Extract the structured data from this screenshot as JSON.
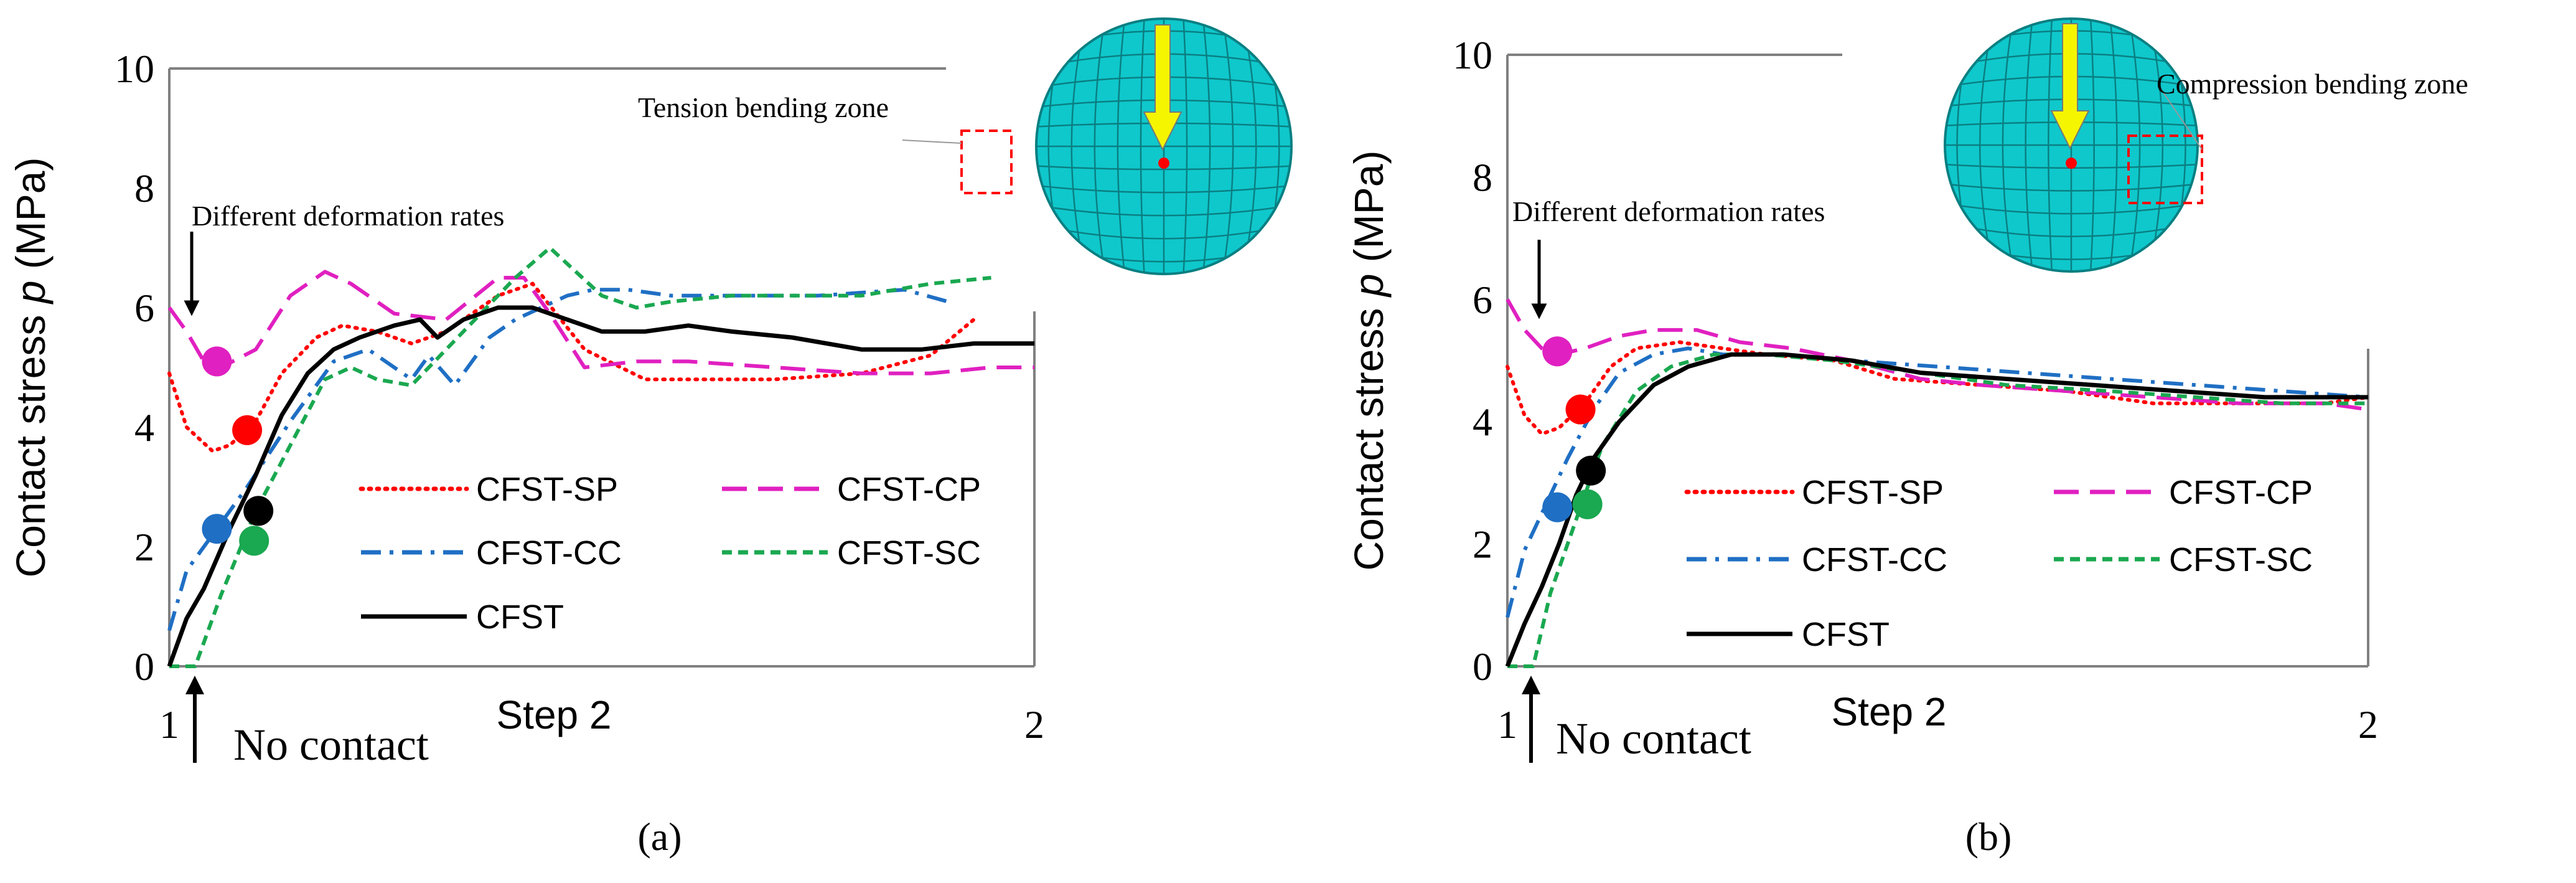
{
  "figure": {
    "captions": [
      "(a)",
      "(b)"
    ]
  },
  "colors": {
    "CFST-SP": "#ff0000",
    "CFST-CP": "#e020c0",
    "CFST-CC": "#1f6fc4",
    "CFST-SC": "#1aa850",
    "CFST": "#000000",
    "disk_fill": "#0fc8cc",
    "disk_grid": "#0a7f82",
    "arrow_fill": "#f5f500",
    "zone_box": "#ff0000"
  },
  "chart_data": [
    {
      "type": "line",
      "panel": "a",
      "caption": "(a)",
      "ylabel_prefix": "Contact stress ",
      "ylabel_italic": "p",
      "ylabel_suffix": " (MPa)",
      "ylim": [
        0,
        10
      ],
      "yticks": [
        "0",
        "2",
        "4",
        "6",
        "8",
        "10"
      ],
      "xlim": [
        1,
        2
      ],
      "xticks": [
        "1",
        "2"
      ],
      "step_label": "Step 2",
      "no_contact_label": "No contact",
      "deformation_label": "Different deformation rates",
      "zone_label": "Tension bending zone",
      "zone_side": "left",
      "grid": false,
      "legend": [
        "CFST-SP",
        "CFST-CP",
        "CFST-CC",
        "CFST-SC",
        "CFST"
      ],
      "series": [
        {
          "name": "CFST-SP",
          "dash": "dotted",
          "x": [
            1.0,
            1.02,
            1.05,
            1.07,
            1.1,
            1.13,
            1.17,
            1.2,
            1.24,
            1.28,
            1.32,
            1.35,
            1.38,
            1.42,
            1.48,
            1.55,
            1.6,
            1.65,
            1.7,
            1.8,
            1.88,
            1.93
          ],
          "y": [
            4.9,
            4.0,
            3.6,
            3.7,
            4.1,
            4.9,
            5.5,
            5.7,
            5.6,
            5.4,
            5.6,
            5.9,
            6.2,
            6.4,
            5.3,
            4.8,
            4.8,
            4.8,
            4.8,
            4.9,
            5.2,
            5.8
          ]
        },
        {
          "name": "CFST-CP",
          "dash": "dashed",
          "x": [
            1.0,
            1.02,
            1.04,
            1.06,
            1.1,
            1.14,
            1.18,
            1.21,
            1.26,
            1.32,
            1.38,
            1.41,
            1.44,
            1.48,
            1.54,
            1.6,
            1.7,
            1.8,
            1.88,
            1.95,
            2.0
          ],
          "y": [
            6.0,
            5.6,
            5.1,
            5.0,
            5.3,
            6.2,
            6.6,
            6.4,
            5.9,
            5.8,
            6.5,
            6.5,
            5.9,
            5.0,
            5.1,
            5.1,
            5.0,
            4.9,
            4.9,
            5.0,
            5.0
          ]
        },
        {
          "name": "CFST-CC",
          "dash": "dashdot",
          "x": [
            1.0,
            1.02,
            1.05,
            1.09,
            1.14,
            1.19,
            1.23,
            1.26,
            1.28,
            1.3,
            1.33,
            1.37,
            1.4,
            1.43,
            1.46,
            1.49,
            1.53,
            1.58,
            1.65,
            1.75,
            1.85,
            1.9
          ],
          "y": [
            0.6,
            1.6,
            2.2,
            3.0,
            4.1,
            5.1,
            5.3,
            5.0,
            4.8,
            5.2,
            4.7,
            5.5,
            5.8,
            6.0,
            6.2,
            6.3,
            6.3,
            6.2,
            6.2,
            6.2,
            6.3,
            6.1
          ]
        },
        {
          "name": "CFST-SC",
          "dash": "shortdash",
          "x": [
            1.0,
            1.03,
            1.06,
            1.1,
            1.14,
            1.18,
            1.21,
            1.24,
            1.28,
            1.32,
            1.36,
            1.4,
            1.44,
            1.47,
            1.5,
            1.54,
            1.58,
            1.65,
            1.72,
            1.8,
            1.88,
            1.95
          ],
          "y": [
            0.0,
            0.0,
            1.2,
            2.6,
            3.7,
            4.8,
            5.0,
            4.8,
            4.7,
            5.3,
            5.9,
            6.5,
            7.0,
            6.6,
            6.2,
            6.0,
            6.1,
            6.2,
            6.2,
            6.2,
            6.4,
            6.5
          ]
        },
        {
          "name": "CFST",
          "dash": "solid",
          "x": [
            1.0,
            1.02,
            1.04,
            1.07,
            1.1,
            1.13,
            1.16,
            1.19,
            1.22,
            1.26,
            1.29,
            1.31,
            1.34,
            1.38,
            1.42,
            1.46,
            1.5,
            1.55,
            1.6,
            1.65,
            1.72,
            1.8,
            1.87,
            1.93,
            2.0
          ],
          "y": [
            0.0,
            0.8,
            1.3,
            2.3,
            3.2,
            4.2,
            4.9,
            5.3,
            5.5,
            5.7,
            5.8,
            5.5,
            5.8,
            6.0,
            6.0,
            5.8,
            5.6,
            5.6,
            5.7,
            5.6,
            5.5,
            5.3,
            5.3,
            5.4,
            5.4
          ]
        }
      ],
      "markers": [
        {
          "series": "CFST-CP",
          "x": 1.055,
          "y": 5.1
        },
        {
          "series": "CFST-SP",
          "x": 1.09,
          "y": 3.95
        },
        {
          "series": "CFST-CC",
          "x": 1.055,
          "y": 2.3
        },
        {
          "series": "CFST-SC",
          "x": 1.098,
          "y": 2.1
        },
        {
          "series": "CFST",
          "x": 1.103,
          "y": 2.6
        }
      ]
    },
    {
      "type": "line",
      "panel": "b",
      "caption": "(b)",
      "ylabel_prefix": "Contact stress ",
      "ylabel_italic": "p",
      "ylabel_suffix": " (MPa)",
      "ylim": [
        0,
        10
      ],
      "yticks": [
        "0",
        "2",
        "4",
        "6",
        "8",
        "10"
      ],
      "xlim": [
        1,
        2
      ],
      "xticks": [
        "1",
        "2"
      ],
      "step_label": "Step 2",
      "no_contact_label": "No contact",
      "deformation_label": "Different deformation rates",
      "zone_label": "Compression bending zone",
      "zone_side": "right",
      "grid": false,
      "legend": [
        "CFST-SP",
        "CFST-CP",
        "CFST-CC",
        "CFST-SC",
        "CFST"
      ],
      "series": [
        {
          "name": "CFST-SP",
          "dash": "dotted",
          "x": [
            1.0,
            1.02,
            1.04,
            1.06,
            1.09,
            1.12,
            1.15,
            1.2,
            1.25,
            1.3,
            1.38,
            1.45,
            1.55,
            1.65,
            1.75,
            1.85,
            1.95,
            2.0
          ],
          "y": [
            4.9,
            4.1,
            3.8,
            3.9,
            4.3,
            4.9,
            5.2,
            5.3,
            5.2,
            5.1,
            5.0,
            4.7,
            4.6,
            4.5,
            4.3,
            4.3,
            4.3,
            4.4
          ]
        },
        {
          "name": "CFST-CP",
          "dash": "dashed",
          "x": [
            1.0,
            1.02,
            1.04,
            1.06,
            1.09,
            1.13,
            1.17,
            1.22,
            1.27,
            1.33,
            1.4,
            1.48,
            1.55,
            1.65,
            1.75,
            1.85,
            1.95,
            2.0
          ],
          "y": [
            6.0,
            5.5,
            5.2,
            5.1,
            5.2,
            5.4,
            5.5,
            5.5,
            5.3,
            5.2,
            5.0,
            4.7,
            4.6,
            4.5,
            4.4,
            4.3,
            4.3,
            4.2
          ]
        },
        {
          "name": "CFST-CC",
          "dash": "dashdot",
          "x": [
            1.0,
            1.02,
            1.04,
            1.07,
            1.1,
            1.13,
            1.17,
            1.21,
            1.25,
            1.32,
            1.4,
            1.5,
            1.6,
            1.7,
            1.8,
            1.9,
            2.0
          ],
          "y": [
            0.8,
            1.9,
            2.5,
            3.4,
            4.2,
            4.8,
            5.1,
            5.2,
            5.1,
            5.1,
            5.0,
            4.9,
            4.8,
            4.7,
            4.6,
            4.5,
            4.4
          ]
        },
        {
          "name": "CFST-SC",
          "dash": "shortdash",
          "x": [
            1.0,
            1.03,
            1.05,
            1.08,
            1.11,
            1.15,
            1.19,
            1.24,
            1.3,
            1.38,
            1.48,
            1.58,
            1.7,
            1.8,
            1.9,
            2.0
          ],
          "y": [
            0.0,
            0.0,
            1.2,
            2.4,
            3.6,
            4.5,
            4.9,
            5.1,
            5.1,
            5.0,
            4.8,
            4.6,
            4.5,
            4.4,
            4.3,
            4.3
          ]
        },
        {
          "name": "CFST",
          "dash": "solid",
          "x": [
            1.0,
            1.02,
            1.04,
            1.06,
            1.08,
            1.1,
            1.13,
            1.17,
            1.21,
            1.26,
            1.32,
            1.4,
            1.48,
            1.58,
            1.68,
            1.78,
            1.88,
            2.0
          ],
          "y": [
            0.0,
            0.7,
            1.3,
            2.0,
            2.8,
            3.4,
            4.0,
            4.6,
            4.9,
            5.1,
            5.1,
            5.0,
            4.8,
            4.7,
            4.6,
            4.5,
            4.4,
            4.4
          ]
        }
      ],
      "markers": [
        {
          "series": "CFST-CP",
          "x": 1.058,
          "y": 5.15
        },
        {
          "series": "CFST-SP",
          "x": 1.085,
          "y": 4.2
        },
        {
          "series": "CFST-CC",
          "x": 1.058,
          "y": 2.6
        },
        {
          "series": "CFST-SC",
          "x": 1.093,
          "y": 2.65
        },
        {
          "series": "CFST",
          "x": 1.097,
          "y": 3.2
        }
      ]
    }
  ]
}
